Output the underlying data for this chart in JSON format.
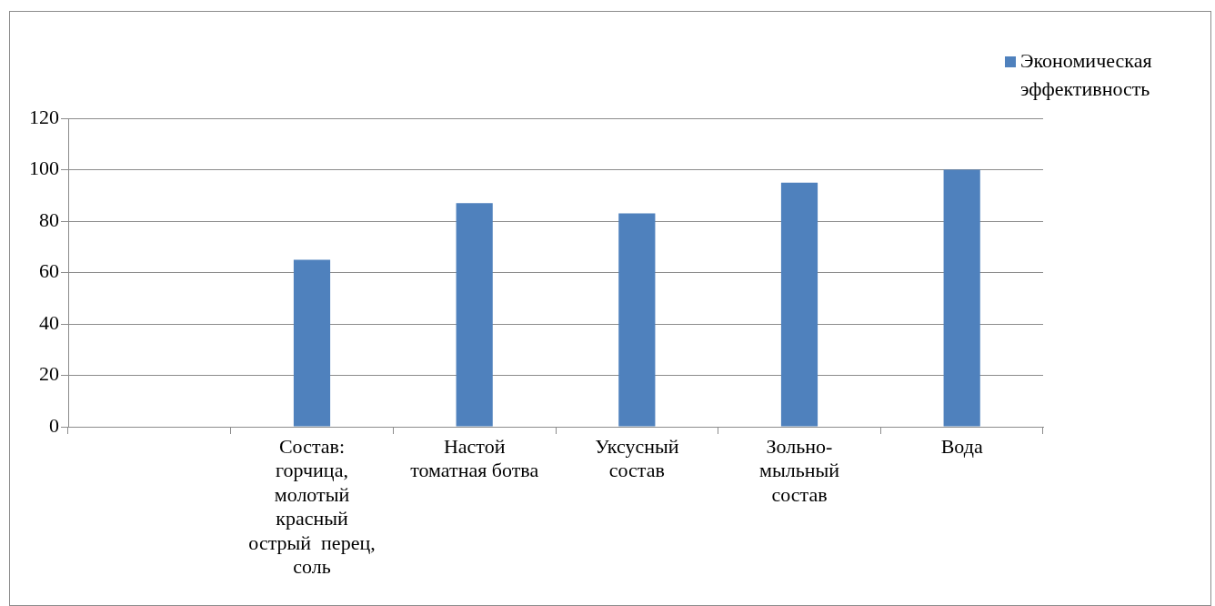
{
  "chart_data": {
    "type": "bar",
    "categories": [
      null,
      "Состав:\nгорчица,\nмолотый\nкрасный\nострый  перец,\nсоль",
      "Настой\nтоматная ботва",
      "Уксусный\nсостав",
      "Зольно-\nмыльный\nсостав",
      "Вода"
    ],
    "series": [
      {
        "name": "Экономическая эффективность",
        "color": "#4f81bd",
        "values": [
          0,
          65,
          87,
          83,
          95,
          100
        ]
      }
    ],
    "ylim": [
      0,
      120
    ],
    "yticks": [
      0,
      20,
      40,
      60,
      80,
      100,
      120
    ],
    "grid": "y",
    "legend": "top right"
  }
}
